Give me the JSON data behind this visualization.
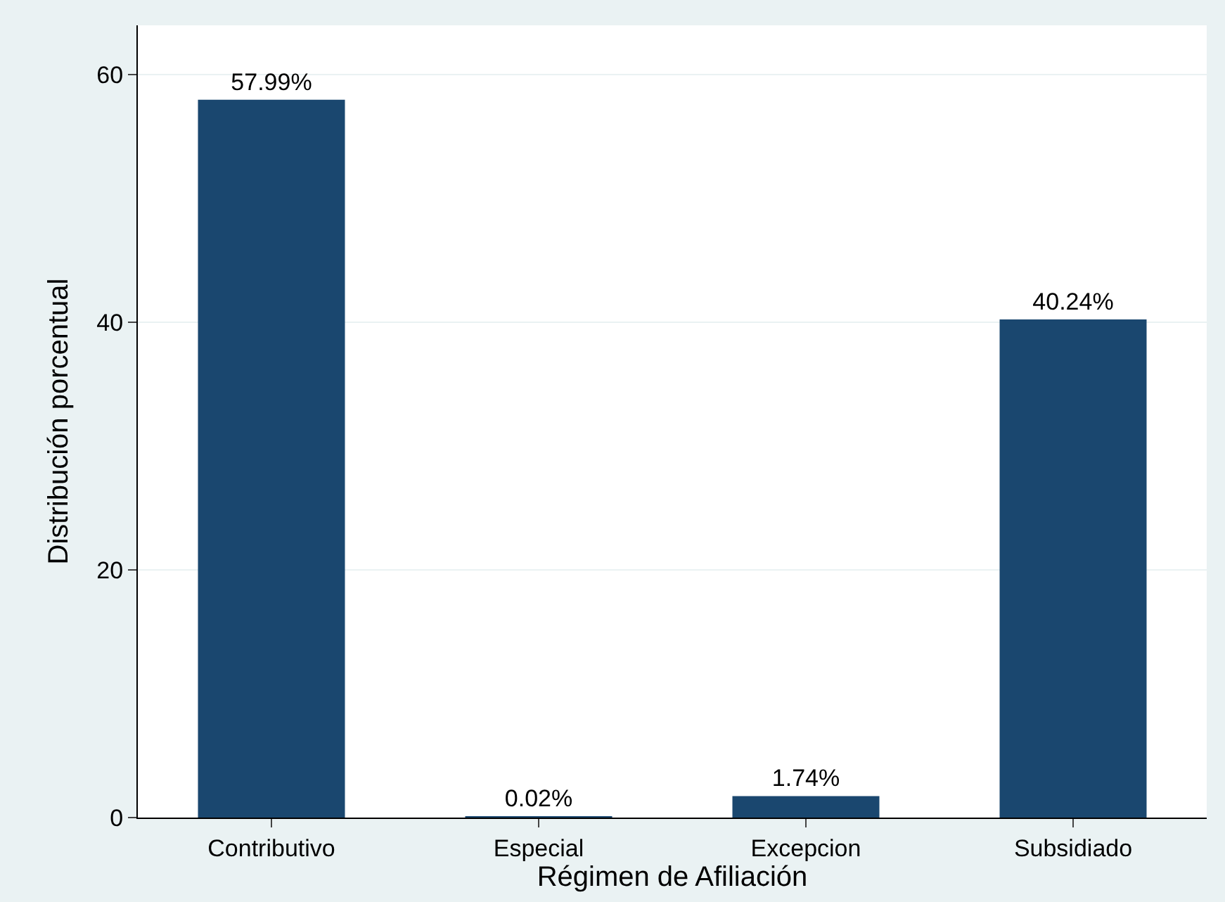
{
  "chart_data": {
    "type": "bar",
    "categories": [
      "Contributivo",
      "Especial",
      "Excepcion",
      "Subsidiado"
    ],
    "values": [
      57.99,
      0.02,
      1.74,
      40.24
    ],
    "value_labels": [
      "57.99%",
      "0.02%",
      "1.74%",
      "40.24%"
    ],
    "color": "#1a476f",
    "xlabel": "Régimen de Afiliación",
    "ylabel": "Distribución porcentual",
    "ylim": [
      0,
      64
    ],
    "yticks": [
      0,
      20,
      40,
      60
    ],
    "grid": "y"
  }
}
